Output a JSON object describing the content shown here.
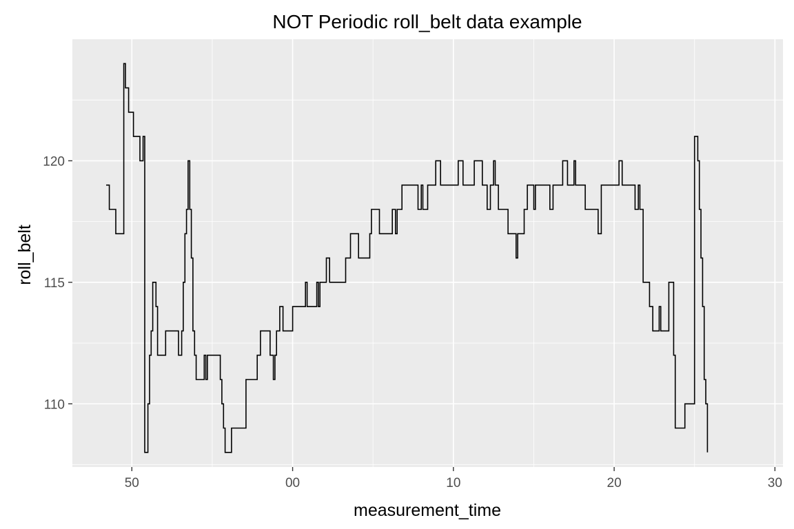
{
  "chart_data": {
    "type": "line",
    "title": "NOT Periodic roll_belt data example",
    "xlabel": "measurement_time",
    "ylabel": "roll_belt",
    "x_ticks": [
      {
        "pos": 0,
        "label": "50"
      },
      {
        "pos": 10,
        "label": "00"
      },
      {
        "pos": 20,
        "label": "10"
      },
      {
        "pos": 30,
        "label": "20"
      },
      {
        "pos": 40,
        "label": "30"
      }
    ],
    "y_ticks": [
      110,
      115,
      120
    ],
    "xlim": [
      -3.7,
      40.5
    ],
    "ylim": [
      107.4,
      125
    ],
    "grid": true,
    "line_color": "#000000",
    "panel_background": "#ebebeb",
    "grid_color": "#ffffff",
    "series": [
      {
        "points": [
          [
            -1.6,
            119
          ],
          [
            -1.4,
            119
          ],
          [
            -1.4,
            118
          ],
          [
            -1.0,
            118
          ],
          [
            -1.0,
            117
          ],
          [
            -0.5,
            117
          ],
          [
            -0.5,
            124
          ],
          [
            -0.4,
            124
          ],
          [
            -0.4,
            123
          ],
          [
            -0.2,
            123
          ],
          [
            -0.2,
            122
          ],
          [
            0.1,
            122
          ],
          [
            0.1,
            121
          ],
          [
            0.5,
            121
          ],
          [
            0.5,
            120
          ],
          [
            0.7,
            120
          ],
          [
            0.7,
            121
          ],
          [
            0.8,
            121
          ],
          [
            0.8,
            108
          ],
          [
            1.0,
            108
          ],
          [
            1.0,
            110
          ],
          [
            1.1,
            110
          ],
          [
            1.1,
            112
          ],
          [
            1.2,
            112
          ],
          [
            1.2,
            113
          ],
          [
            1.3,
            113
          ],
          [
            1.3,
            115
          ],
          [
            1.5,
            115
          ],
          [
            1.5,
            114
          ],
          [
            1.6,
            114
          ],
          [
            1.6,
            112
          ],
          [
            2.1,
            112
          ],
          [
            2.1,
            113
          ],
          [
            2.9,
            113
          ],
          [
            2.9,
            112
          ],
          [
            3.1,
            112
          ],
          [
            3.1,
            113
          ],
          [
            3.2,
            113
          ],
          [
            3.2,
            115
          ],
          [
            3.3,
            115
          ],
          [
            3.3,
            117
          ],
          [
            3.4,
            117
          ],
          [
            3.4,
            118
          ],
          [
            3.5,
            118
          ],
          [
            3.5,
            120
          ],
          [
            3.6,
            120
          ],
          [
            3.6,
            118
          ],
          [
            3.7,
            118
          ],
          [
            3.7,
            116
          ],
          [
            3.8,
            116
          ],
          [
            3.8,
            113
          ],
          [
            3.9,
            113
          ],
          [
            3.9,
            112
          ],
          [
            4.0,
            112
          ],
          [
            4.0,
            111
          ],
          [
            4.5,
            111
          ],
          [
            4.5,
            112
          ],
          [
            4.6,
            112
          ],
          [
            4.6,
            111
          ],
          [
            4.7,
            111
          ],
          [
            4.7,
            112
          ],
          [
            5.5,
            112
          ],
          [
            5.5,
            111
          ],
          [
            5.6,
            111
          ],
          [
            5.6,
            110
          ],
          [
            5.7,
            110
          ],
          [
            5.7,
            109
          ],
          [
            5.8,
            109
          ],
          [
            5.8,
            108
          ],
          [
            6.2,
            108
          ],
          [
            6.2,
            109
          ],
          [
            7.1,
            109
          ],
          [
            7.1,
            111
          ],
          [
            7.8,
            111
          ],
          [
            7.8,
            112
          ],
          [
            8.0,
            112
          ],
          [
            8.0,
            113
          ],
          [
            8.6,
            113
          ],
          [
            8.6,
            112
          ],
          [
            8.8,
            112
          ],
          [
            8.8,
            111
          ],
          [
            8.9,
            111
          ],
          [
            8.9,
            112
          ],
          [
            9.0,
            112
          ],
          [
            9.0,
            113
          ],
          [
            9.2,
            113
          ],
          [
            9.2,
            114
          ],
          [
            9.4,
            114
          ],
          [
            9.4,
            113
          ],
          [
            10.0,
            113
          ],
          [
            10.0,
            114
          ],
          [
            10.8,
            114
          ],
          [
            10.8,
            115
          ],
          [
            10.9,
            115
          ],
          [
            10.9,
            114
          ],
          [
            11.3,
            114
          ],
          [
            11.3,
            114
          ],
          [
            11.5,
            114
          ],
          [
            11.5,
            115
          ],
          [
            11.6,
            115
          ],
          [
            11.6,
            114
          ],
          [
            11.7,
            114
          ],
          [
            11.7,
            115
          ],
          [
            12.1,
            115
          ],
          [
            12.1,
            116
          ],
          [
            12.3,
            116
          ],
          [
            12.3,
            115
          ],
          [
            13.3,
            115
          ],
          [
            13.3,
            116
          ],
          [
            13.6,
            116
          ],
          [
            13.6,
            117
          ],
          [
            14.1,
            117
          ],
          [
            14.1,
            116
          ],
          [
            14.8,
            116
          ],
          [
            14.8,
            117
          ],
          [
            14.9,
            117
          ],
          [
            14.9,
            118
          ],
          [
            15.4,
            118
          ],
          [
            15.4,
            117
          ],
          [
            16.2,
            117
          ],
          [
            16.2,
            118
          ],
          [
            16.4,
            118
          ],
          [
            16.4,
            117
          ],
          [
            16.5,
            117
          ],
          [
            16.5,
            118
          ],
          [
            16.8,
            118
          ],
          [
            16.8,
            119
          ],
          [
            17.8,
            119
          ],
          [
            17.8,
            118
          ],
          [
            18.0,
            118
          ],
          [
            18.0,
            119
          ],
          [
            18.1,
            119
          ],
          [
            18.1,
            118
          ],
          [
            18.4,
            118
          ],
          [
            18.4,
            119
          ],
          [
            18.9,
            119
          ],
          [
            18.9,
            120
          ],
          [
            19.2,
            120
          ],
          [
            19.2,
            119
          ],
          [
            20.3,
            119
          ],
          [
            20.3,
            120
          ],
          [
            20.6,
            120
          ],
          [
            20.6,
            119
          ],
          [
            21.3,
            119
          ],
          [
            21.3,
            120
          ],
          [
            21.8,
            120
          ],
          [
            21.8,
            119
          ],
          [
            22.1,
            119
          ],
          [
            22.1,
            118
          ],
          [
            22.3,
            118
          ],
          [
            22.3,
            119
          ],
          [
            22.5,
            119
          ],
          [
            22.5,
            120
          ],
          [
            22.6,
            120
          ],
          [
            22.6,
            119
          ],
          [
            22.8,
            119
          ],
          [
            22.8,
            118
          ],
          [
            23.4,
            118
          ],
          [
            23.4,
            117
          ],
          [
            23.9,
            117
          ],
          [
            23.9,
            116
          ],
          [
            24.0,
            116
          ],
          [
            24.0,
            117
          ],
          [
            24.4,
            117
          ],
          [
            24.4,
            118
          ],
          [
            24.6,
            118
          ],
          [
            24.6,
            119
          ],
          [
            25.0,
            119
          ],
          [
            25.0,
            118
          ],
          [
            25.1,
            118
          ],
          [
            25.1,
            119
          ],
          [
            26.0,
            119
          ],
          [
            26.0,
            118
          ],
          [
            26.2,
            118
          ],
          [
            26.2,
            119
          ],
          [
            26.8,
            119
          ],
          [
            26.8,
            120
          ],
          [
            27.1,
            120
          ],
          [
            27.1,
            119
          ],
          [
            27.5,
            119
          ],
          [
            27.5,
            120
          ],
          [
            27.6,
            120
          ],
          [
            27.6,
            119
          ],
          [
            28.2,
            119
          ],
          [
            28.2,
            118
          ],
          [
            29.0,
            118
          ],
          [
            29.0,
            117
          ],
          [
            29.2,
            117
          ],
          [
            29.2,
            119
          ],
          [
            30.3,
            119
          ],
          [
            30.3,
            120
          ],
          [
            30.5,
            120
          ],
          [
            30.5,
            119
          ],
          [
            31.3,
            119
          ],
          [
            31.3,
            118
          ],
          [
            31.5,
            118
          ],
          [
            31.5,
            119
          ],
          [
            31.6,
            119
          ],
          [
            31.6,
            118
          ],
          [
            31.8,
            118
          ],
          [
            31.8,
            115
          ],
          [
            32.2,
            115
          ],
          [
            32.2,
            114
          ],
          [
            32.4,
            114
          ],
          [
            32.4,
            113
          ],
          [
            32.8,
            113
          ],
          [
            32.8,
            114
          ],
          [
            32.9,
            114
          ],
          [
            32.9,
            113
          ],
          [
            33.4,
            113
          ],
          [
            33.4,
            115
          ],
          [
            33.7,
            115
          ],
          [
            33.7,
            112
          ],
          [
            33.8,
            112
          ],
          [
            33.8,
            109
          ],
          [
            34.4,
            109
          ],
          [
            34.4,
            110
          ],
          [
            35.0,
            110
          ],
          [
            35.0,
            121
          ],
          [
            35.2,
            121
          ],
          [
            35.2,
            120
          ],
          [
            35.3,
            120
          ],
          [
            35.3,
            118
          ],
          [
            35.4,
            118
          ],
          [
            35.4,
            116
          ],
          [
            35.5,
            116
          ],
          [
            35.5,
            114
          ],
          [
            35.6,
            114
          ],
          [
            35.6,
            111
          ],
          [
            35.7,
            111
          ],
          [
            35.7,
            110
          ],
          [
            35.8,
            110
          ],
          [
            35.8,
            108
          ]
        ]
      }
    ]
  }
}
